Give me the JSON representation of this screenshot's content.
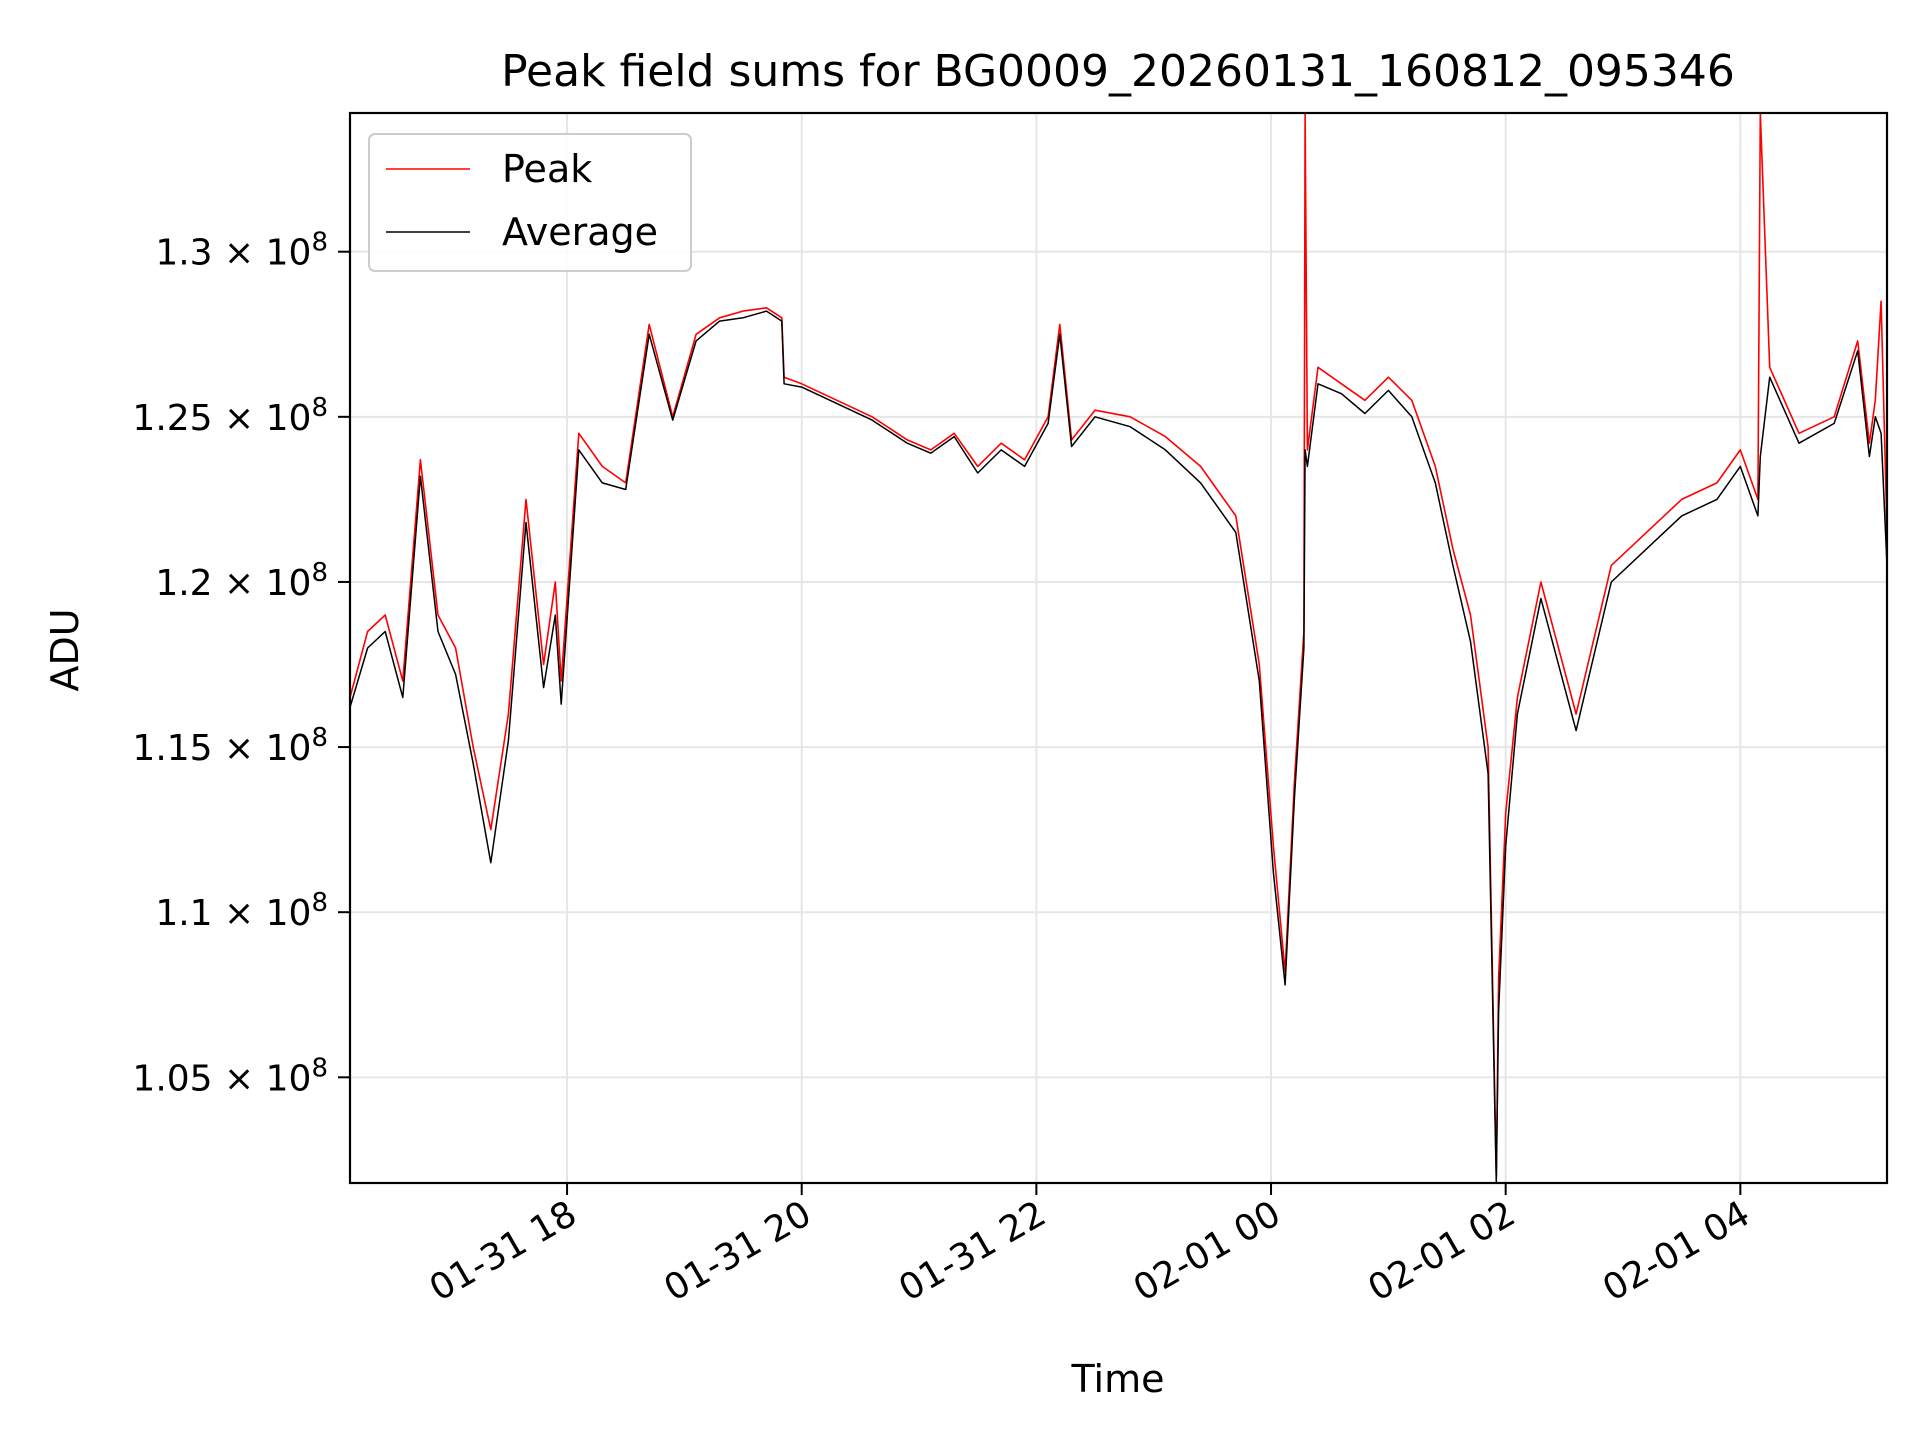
{
  "chart_data": {
    "type": "line",
    "title": "Peak field sums for BG0009_20260131_160812_095346",
    "xlabel": "Time",
    "ylabel": "ADU",
    "x_unit": "hours since 2026-01-31 00:00",
    "xlim": [
      16.15,
      29.25
    ],
    "ylim": [
      101800000,
      134200000
    ],
    "x_ticks": [
      {
        "value": 18,
        "label": "01-31 18"
      },
      {
        "value": 20,
        "label": "01-31 20"
      },
      {
        "value": 22,
        "label": "01-31 22"
      },
      {
        "value": 24,
        "label": "02-01 00"
      },
      {
        "value": 26,
        "label": "02-01 02"
      },
      {
        "value": 28,
        "label": "02-01 04"
      }
    ],
    "y_ticks": [
      {
        "value": 105000000,
        "mantissa": "1.05",
        "base": "10",
        "exponent": "8"
      },
      {
        "value": 110000000,
        "mantissa": "1.1",
        "base": "10",
        "exponent": "8"
      },
      {
        "value": 115000000,
        "mantissa": "1.15",
        "base": "10",
        "exponent": "8"
      },
      {
        "value": 120000000,
        "mantissa": "1.2",
        "base": "10",
        "exponent": "8"
      },
      {
        "value": 125000000,
        "mantissa": "1.25",
        "base": "10",
        "exponent": "8"
      },
      {
        "value": 130000000,
        "mantissa": "1.3",
        "base": "10",
        "exponent": "8"
      }
    ],
    "grid": true,
    "legend_position": "upper-left",
    "series": [
      {
        "name": "Peak",
        "color": "#ff0000",
        "x": [
          16.15,
          16.3,
          16.45,
          16.6,
          16.75,
          16.9,
          17.05,
          17.2,
          17.35,
          17.5,
          17.65,
          17.8,
          17.9,
          17.95,
          18.1,
          18.3,
          18.5,
          18.7,
          18.9,
          19.1,
          19.3,
          19.5,
          19.7,
          19.83,
          19.85,
          20.0,
          20.3,
          20.6,
          20.9,
          21.1,
          21.3,
          21.5,
          21.7,
          21.9,
          22.1,
          22.2,
          22.3,
          22.5,
          22.8,
          23.1,
          23.4,
          23.7,
          23.9,
          24.02,
          24.12,
          24.2,
          24.28,
          24.29,
          24.31,
          24.4,
          24.6,
          24.8,
          25.0,
          25.2,
          25.4,
          25.55,
          25.7,
          25.85,
          25.92,
          25.94,
          26.0,
          26.1,
          26.3,
          26.6,
          26.9,
          27.2,
          27.5,
          27.8,
          28.0,
          28.15,
          28.17,
          28.25,
          28.5,
          28.8,
          29.0,
          29.1,
          29.15,
          29.2,
          29.25
        ],
        "y": [
          116500000,
          118500000,
          119000000,
          117000000,
          123700000,
          119000000,
          118000000,
          115000000,
          112500000,
          116000000,
          122500000,
          117500000,
          120000000,
          117000000,
          124500000,
          123500000,
          123000000,
          127800000,
          125000000,
          127500000,
          128000000,
          128200000,
          128300000,
          128000000,
          126200000,
          126000000,
          125500000,
          125000000,
          124300000,
          124000000,
          124500000,
          123500000,
          124200000,
          123700000,
          125000000,
          127800000,
          124300000,
          125200000,
          125000000,
          124400000,
          123500000,
          122000000,
          117500000,
          112000000,
          108200000,
          114000000,
          118500000,
          134200000,
          124000000,
          126500000,
          126000000,
          125500000,
          126200000,
          125500000,
          123500000,
          121000000,
          119000000,
          115000000,
          102000000,
          108000000,
          113000000,
          116500000,
          120000000,
          116000000,
          120500000,
          121500000,
          122500000,
          123000000,
          124000000,
          122500000,
          134200000,
          126500000,
          124500000,
          125000000,
          127300000,
          124200000,
          125500000,
          128500000,
          121500000
        ]
      },
      {
        "name": "Average",
        "color": "#000000",
        "x": [
          16.15,
          16.3,
          16.45,
          16.6,
          16.75,
          16.9,
          17.05,
          17.2,
          17.35,
          17.5,
          17.65,
          17.8,
          17.9,
          17.95,
          18.1,
          18.3,
          18.5,
          18.7,
          18.9,
          19.1,
          19.3,
          19.5,
          19.7,
          19.83,
          19.85,
          20.0,
          20.3,
          20.6,
          20.9,
          21.1,
          21.3,
          21.5,
          21.7,
          21.9,
          22.1,
          22.2,
          22.3,
          22.5,
          22.8,
          23.1,
          23.4,
          23.7,
          23.9,
          24.02,
          24.12,
          24.2,
          24.28,
          24.29,
          24.31,
          24.4,
          24.6,
          24.8,
          25.0,
          25.2,
          25.4,
          25.55,
          25.7,
          25.85,
          25.92,
          25.94,
          26.0,
          26.1,
          26.3,
          26.6,
          26.9,
          27.2,
          27.5,
          27.8,
          28.0,
          28.15,
          28.17,
          28.25,
          28.5,
          28.8,
          29.0,
          29.1,
          29.15,
          29.2,
          29.25
        ],
        "y": [
          116200000,
          118000000,
          118500000,
          116500000,
          123200000,
          118500000,
          117200000,
          114500000,
          111500000,
          115200000,
          121800000,
          116800000,
          119000000,
          116300000,
          124000000,
          123000000,
          122800000,
          127500000,
          124900000,
          127300000,
          127900000,
          128000000,
          128200000,
          127900000,
          126000000,
          125900000,
          125400000,
          124900000,
          124200000,
          123900000,
          124400000,
          123300000,
          124000000,
          123500000,
          124800000,
          127500000,
          124100000,
          125000000,
          124700000,
          124000000,
          123000000,
          121500000,
          117000000,
          111200000,
          107800000,
          113500000,
          118000000,
          124000000,
          123500000,
          126000000,
          125700000,
          125100000,
          125800000,
          125000000,
          123000000,
          120500000,
          118200000,
          114200000,
          101800000,
          107000000,
          112000000,
          116000000,
          119500000,
          115500000,
          120000000,
          121000000,
          122000000,
          122500000,
          123500000,
          122000000,
          123800000,
          126200000,
          124200000,
          124800000,
          127000000,
          123800000,
          125000000,
          124500000,
          120500000
        ]
      }
    ]
  }
}
